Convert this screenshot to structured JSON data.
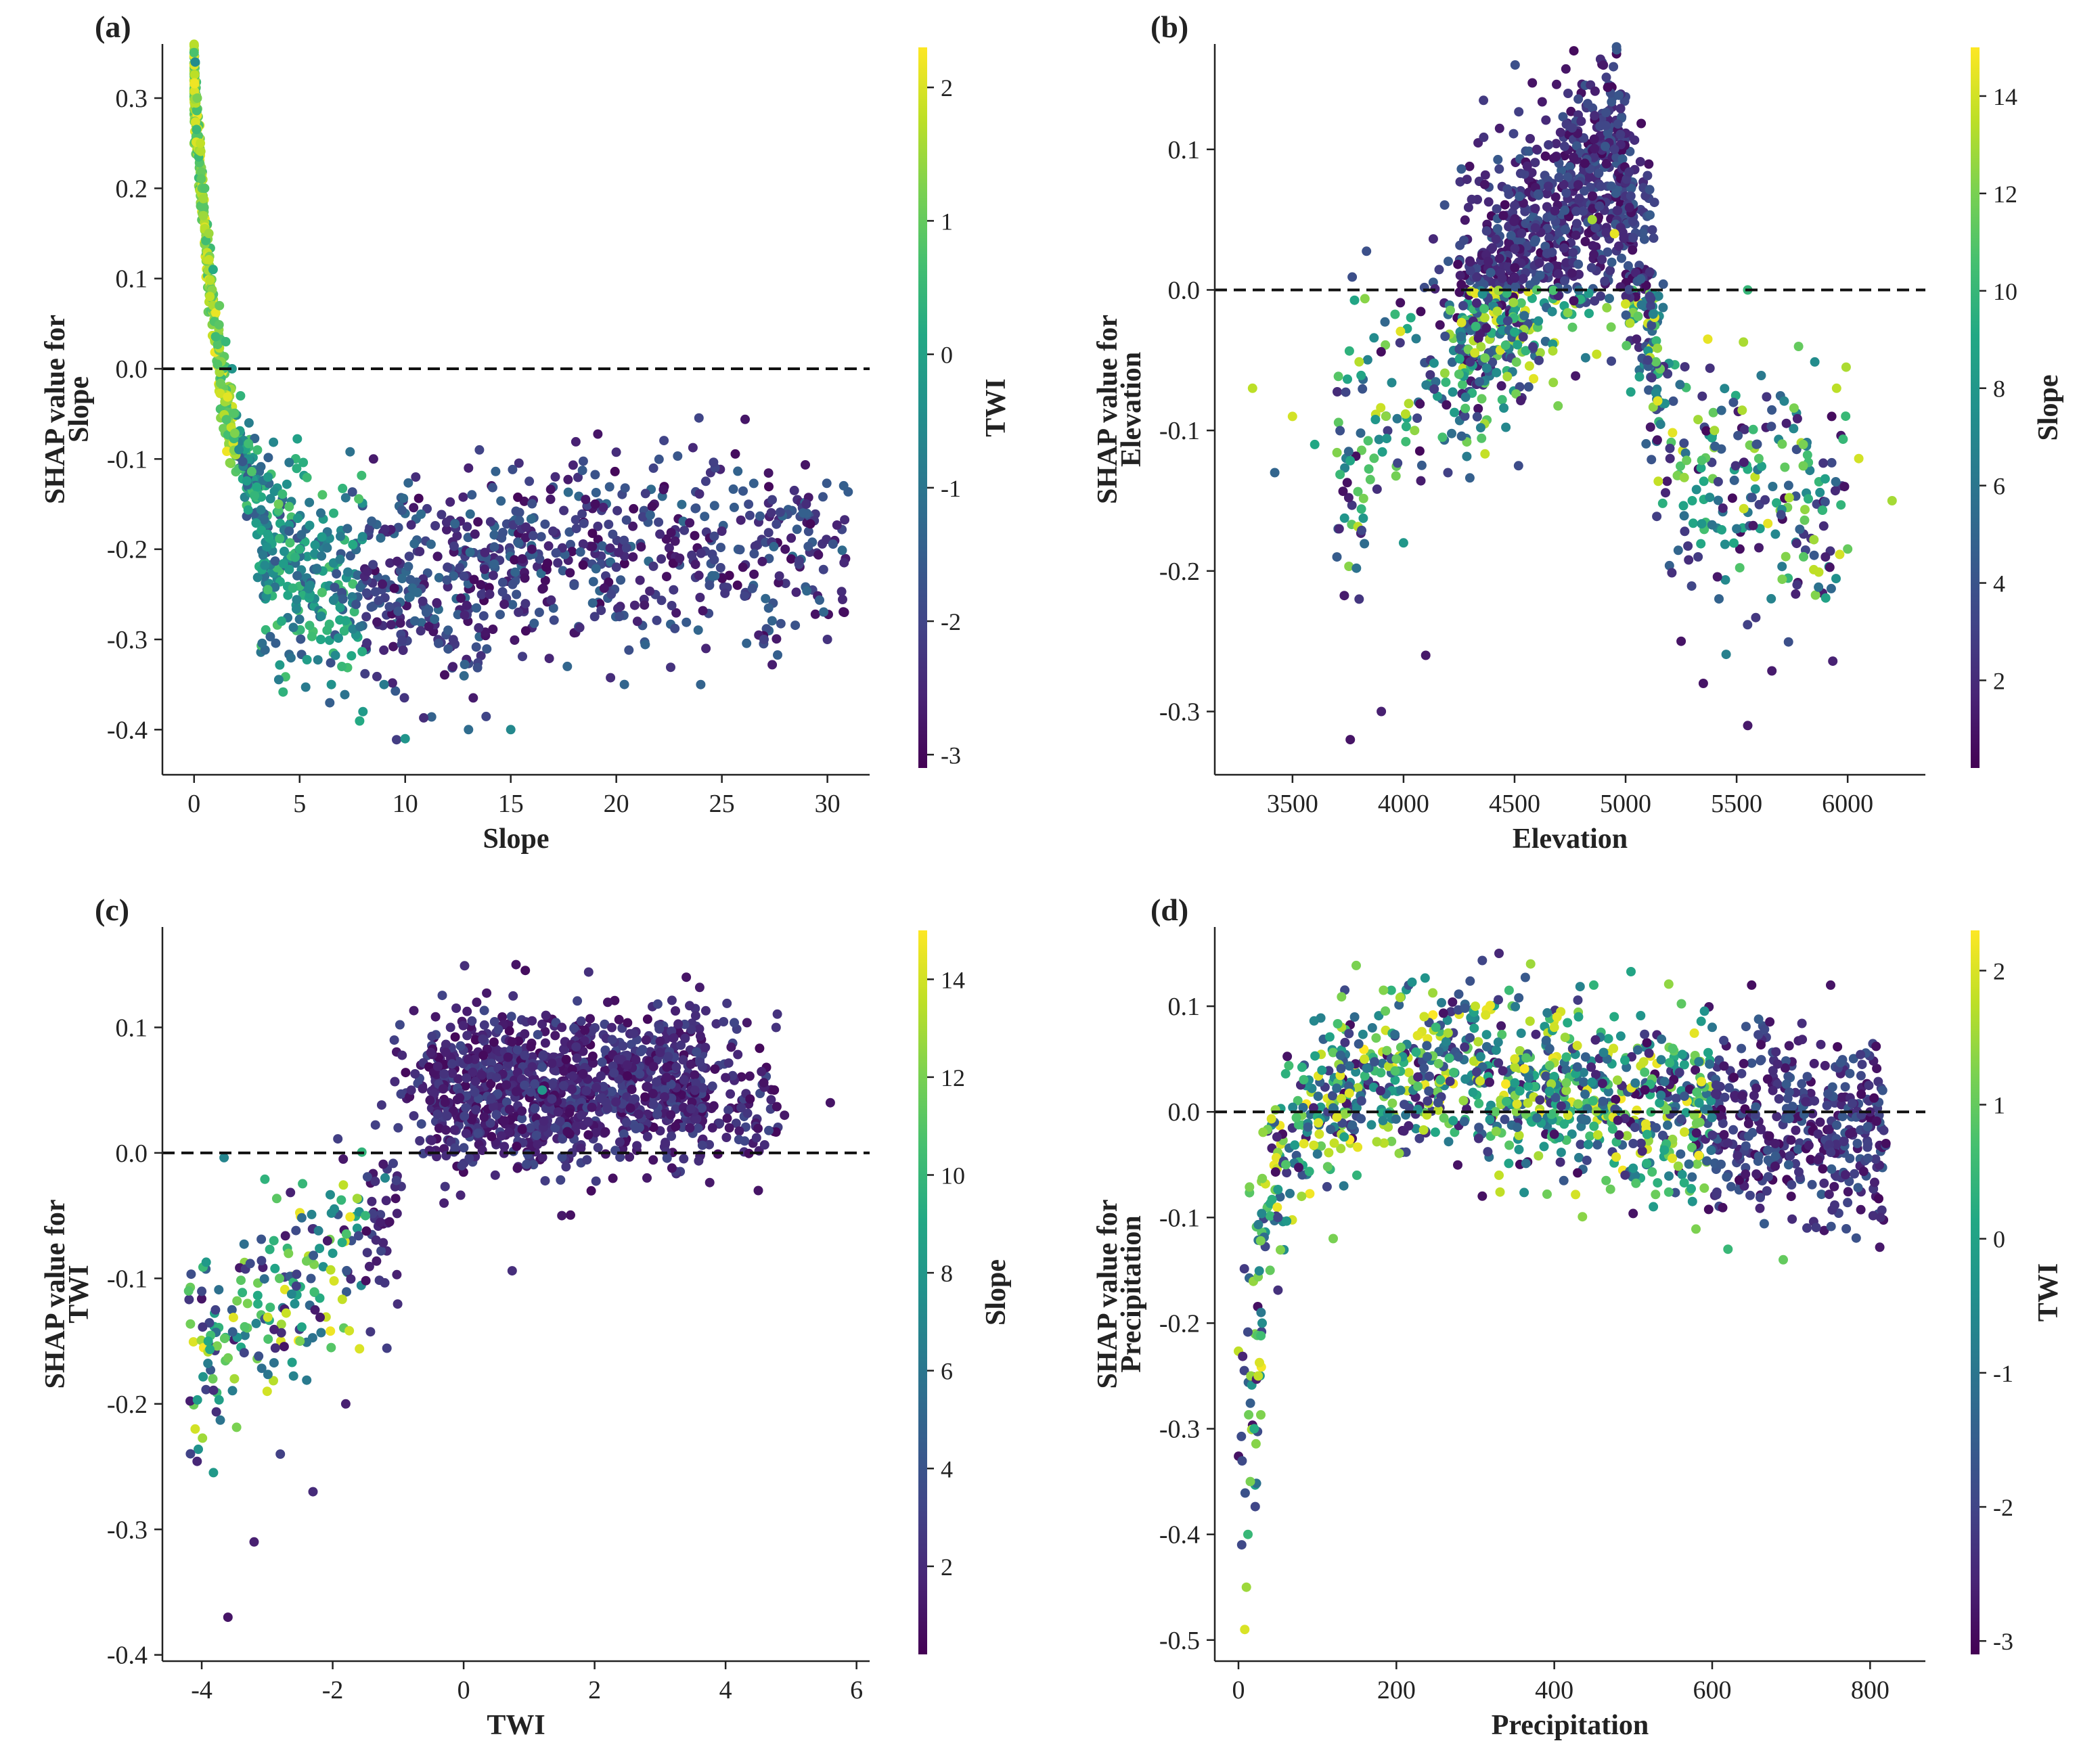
{
  "chart_data": [
    {
      "type": "scatter",
      "panel_label": "(a)",
      "feature": "Slope",
      "xlabel": "Slope",
      "ylabel_line1": "SHAP value for",
      "ylabel_line2": "Slope",
      "xlim": [
        -1.5,
        32
      ],
      "ylim": [
        -0.45,
        0.36
      ],
      "xticks": [
        0,
        5,
        10,
        15,
        20,
        25,
        30
      ],
      "xtick_labels": [
        "0",
        "5",
        "10",
        "15",
        "20",
        "25",
        "30"
      ],
      "yticks": [
        0.3,
        0.2,
        0.1,
        0.0,
        -0.1,
        -0.2,
        -0.3,
        -0.4
      ],
      "ytick_labels": [
        "0.3",
        "0.2",
        "0.1",
        "0.0",
        "-0.1",
        "-0.2",
        "-0.3",
        "-0.4"
      ],
      "zero_line": 0.0,
      "colorbar": {
        "label": "TWI",
        "range": [
          -3.1,
          2.3
        ],
        "ticks": [
          2,
          1,
          0,
          -1,
          -2,
          -3
        ],
        "tick_labels": [
          "2",
          "1",
          "0",
          "-1",
          "-2",
          "-3"
        ]
      },
      "points": [
        [
          0.05,
          0.34,
          -0.5
        ],
        [
          0.15,
          0.3,
          1.2
        ],
        [
          0.3,
          0.25,
          1.8
        ],
        [
          0.5,
          0.2,
          0.8
        ],
        [
          0.7,
          0.15,
          1.5
        ],
        [
          0.9,
          0.11,
          0.2
        ],
        [
          1.2,
          0.07,
          1.0
        ],
        [
          1.5,
          0.03,
          0.5
        ],
        [
          1.8,
          0.0,
          -0.3
        ],
        [
          2.2,
          -0.03,
          0.4
        ],
        [
          2.6,
          -0.06,
          -0.8
        ],
        [
          3.0,
          -0.09,
          0.6
        ],
        [
          3.5,
          -0.12,
          -0.2
        ],
        [
          4.0,
          -0.15,
          1.1
        ],
        [
          4.5,
          -0.18,
          -1.5
        ],
        [
          5.0,
          -0.2,
          0.3
        ],
        [
          5.5,
          -0.24,
          -0.6
        ],
        [
          6.0,
          -0.3,
          0.1
        ],
        [
          6.5,
          -0.35,
          -0.4
        ],
        [
          7.0,
          -0.33,
          0.5
        ],
        [
          8.0,
          -0.38,
          -0.2
        ],
        [
          9.0,
          -0.35,
          -0.9
        ],
        [
          10.0,
          -0.41,
          -0.3
        ],
        [
          11.0,
          -0.27,
          -1.6
        ],
        [
          12.0,
          -0.22,
          -2.1
        ],
        [
          13.0,
          -0.4,
          -1.2
        ],
        [
          14.0,
          -0.25,
          -2.5
        ],
        [
          15.0,
          -0.4,
          -0.6
        ],
        [
          16.0,
          -0.2,
          -2.8
        ],
        [
          17.0,
          -0.18,
          -2.3
        ],
        [
          18.0,
          -0.24,
          -1.8
        ],
        [
          19.0,
          -0.15,
          -2.9
        ],
        [
          20.0,
          -0.22,
          -2.2
        ],
        [
          21.0,
          -0.28,
          -2.6
        ],
        [
          22.0,
          -0.17,
          -2.0
        ],
        [
          23.0,
          -0.21,
          -2.7
        ],
        [
          24.0,
          -0.35,
          -1.4
        ],
        [
          25.0,
          -0.18,
          -2.5
        ],
        [
          26.0,
          -0.22,
          -2.9
        ],
        [
          27.0,
          -0.3,
          -2.1
        ],
        [
          28.0,
          -0.2,
          -2.8
        ],
        [
          29.0,
          -0.15,
          -2.4
        ],
        [
          30.0,
          -0.3,
          -2.3
        ],
        [
          30.8,
          -0.27,
          -2.9
        ],
        [
          8.5,
          -0.1,
          -2.7
        ],
        [
          10.5,
          -0.12,
          -2.4
        ],
        [
          13.0,
          -0.11,
          -2.6
        ],
        [
          6.0,
          -0.16,
          -1.1
        ]
      ]
    },
    {
      "type": "scatter",
      "panel_label": "(b)",
      "feature": "Elevation",
      "xlabel": "Elevation",
      "ylabel_line1": "SHAP value for",
      "ylabel_line2": "Elevation",
      "xlim": [
        3150,
        6350
      ],
      "ylim": [
        -0.345,
        0.175
      ],
      "xticks": [
        3500,
        4000,
        4500,
        5000,
        5500,
        6000
      ],
      "xtick_labels": [
        "3500",
        "4000",
        "4500",
        "5000",
        "5500",
        "6000"
      ],
      "yticks": [
        0.1,
        0.0,
        -0.1,
        -0.2,
        -0.3
      ],
      "ytick_labels": [
        "0.1",
        "0.0",
        "-0.1",
        "-0.2",
        "-0.3"
      ],
      "zero_line": 0.0,
      "colorbar": {
        "label": "Slope",
        "range": [
          0.2,
          15
        ],
        "ticks": [
          14,
          12,
          10,
          8,
          6,
          4,
          2
        ],
        "tick_labels": [
          "14",
          "12",
          "10",
          "8",
          "6",
          "4",
          "2"
        ]
      },
      "points": [
        [
          3320,
          -0.07,
          13.5
        ],
        [
          3420,
          -0.13,
          5.0
        ],
        [
          3500,
          -0.09,
          14.0
        ],
        [
          3600,
          -0.11,
          9.0
        ],
        [
          3700,
          -0.19,
          4.5
        ],
        [
          3760,
          -0.32,
          1.0
        ],
        [
          3800,
          -0.22,
          2.5
        ],
        [
          3900,
          -0.3,
          1.5
        ],
        [
          4000,
          -0.18,
          8.0
        ],
        [
          4050,
          -0.1,
          12.5
        ],
        [
          4100,
          -0.26,
          1.2
        ],
        [
          4200,
          -0.13,
          3.0
        ],
        [
          4250,
          -0.06,
          11.0
        ],
        [
          4300,
          0.02,
          1.5
        ],
        [
          4400,
          0.03,
          2.0
        ],
        [
          4500,
          0.06,
          2.5
        ],
        [
          4600,
          0.1,
          1.8
        ],
        [
          4700,
          0.08,
          3.5
        ],
        [
          4800,
          0.12,
          2.0
        ],
        [
          4900,
          0.16,
          1.2
        ],
        [
          4950,
          0.1,
          2.8
        ],
        [
          4850,
          0.05,
          13.0
        ],
        [
          4600,
          0.0,
          11.0
        ],
        [
          4500,
          -0.03,
          9.0
        ],
        [
          5000,
          -0.01,
          14.0
        ],
        [
          5100,
          -0.05,
          3.0
        ],
        [
          5200,
          -0.12,
          2.0
        ],
        [
          5250,
          -0.25,
          1.0
        ],
        [
          5300,
          -0.15,
          9.0
        ],
        [
          5400,
          -0.1,
          13.0
        ],
        [
          5500,
          -0.17,
          6.0
        ],
        [
          5550,
          -0.31,
          1.2
        ],
        [
          5600,
          -0.12,
          11.0
        ],
        [
          5700,
          -0.16,
          3.5
        ],
        [
          5800,
          -0.11,
          12.0
        ],
        [
          5900,
          -0.19,
          1.5
        ],
        [
          5950,
          -0.07,
          13.5
        ],
        [
          6050,
          -0.12,
          14.0
        ],
        [
          6200,
          -0.15,
          13.0
        ],
        [
          5550,
          0.0,
          10.0
        ],
        [
          4950,
          0.04,
          14.5
        ],
        [
          5350,
          -0.28,
          1.0
        ]
      ]
    },
    {
      "type": "scatter",
      "panel_label": "(c)",
      "feature": "TWI",
      "xlabel": "TWI",
      "ylabel_line1": "SHAP value for",
      "ylabel_line2": "TWI",
      "xlim": [
        -4.6,
        6.2
      ],
      "ylim": [
        -0.405,
        0.18
      ],
      "xticks": [
        -4,
        -2,
        0,
        2,
        4,
        6
      ],
      "xtick_labels": [
        "-4",
        "-2",
        "0",
        "2",
        "4",
        "6"
      ],
      "yticks": [
        0.1,
        0.0,
        -0.1,
        -0.2,
        -0.3,
        -0.4
      ],
      "ytick_labels": [
        "0.1",
        "0.0",
        "-0.1",
        "-0.2",
        "-0.3",
        "-0.4"
      ],
      "zero_line": 0.0,
      "colorbar": {
        "label": "Slope",
        "range": [
          0.2,
          15
        ],
        "ticks": [
          14,
          12,
          10,
          8,
          6,
          4,
          2
        ],
        "tick_labels": [
          "14",
          "12",
          "10",
          "8",
          "6",
          "4",
          "2"
        ]
      },
      "points": [
        [
          -4.2,
          -0.11,
          11.0
        ],
        [
          -4.1,
          -0.22,
          14.0
        ],
        [
          -3.9,
          -0.15,
          9.0
        ],
        [
          -3.6,
          -0.37,
          1.0
        ],
        [
          -3.5,
          -0.18,
          13.0
        ],
        [
          -3.3,
          -0.12,
          12.0
        ],
        [
          -3.2,
          -0.31,
          1.5
        ],
        [
          -3.0,
          -0.19,
          14.0
        ],
        [
          -2.8,
          -0.24,
          3.0
        ],
        [
          -2.5,
          -0.15,
          12.0
        ],
        [
          -2.3,
          -0.27,
          2.0
        ],
        [
          -2.0,
          -0.08,
          8.0
        ],
        [
          -1.8,
          -0.2,
          1.5
        ],
        [
          -1.5,
          -0.05,
          10.0
        ],
        [
          -1.2,
          -0.02,
          7.0
        ],
        [
          -1.0,
          0.02,
          3.0
        ],
        [
          -0.8,
          0.05,
          2.0
        ],
        [
          -0.5,
          0.08,
          1.5
        ],
        [
          -0.2,
          0.1,
          2.0
        ],
        [
          0.2,
          0.12,
          1.2
        ],
        [
          0.5,
          0.06,
          2.5
        ],
        [
          0.8,
          0.15,
          1.0
        ],
        [
          1.2,
          0.05,
          8.0
        ],
        [
          1.5,
          0.1,
          1.5
        ],
        [
          1.8,
          0.03,
          2.0
        ],
        [
          2.2,
          0.12,
          1.0
        ],
        [
          2.5,
          0.07,
          1.5
        ],
        [
          2.8,
          -0.02,
          1.2
        ],
        [
          3.0,
          0.08,
          1.8
        ],
        [
          3.4,
          0.14,
          1.0
        ],
        [
          3.8,
          0.02,
          1.3
        ],
        [
          4.0,
          0.06,
          1.5
        ],
        [
          4.5,
          -0.03,
          1.0
        ],
        [
          4.9,
          0.03,
          1.2
        ],
        [
          5.6,
          0.04,
          1.0
        ],
        [
          -0.3,
          -0.04,
          1.5
        ],
        [
          1.5,
          -0.05,
          1.2
        ]
      ]
    },
    {
      "type": "scatter",
      "panel_label": "(d)",
      "feature": "Precipitation",
      "xlabel": "Precipitation",
      "ylabel_line1": "SHAP value for",
      "ylabel_line2": "Precipitation",
      "xlim": [
        -30,
        870
      ],
      "ylim": [
        -0.52,
        0.175
      ],
      "xticks": [
        0,
        200,
        400,
        600,
        800
      ],
      "xtick_labels": [
        "0",
        "200",
        "400",
        "600",
        "800"
      ],
      "yticks": [
        0.1,
        0.0,
        -0.1,
        -0.2,
        -0.3,
        -0.4,
        -0.5
      ],
      "ytick_labels": [
        "0.1",
        "0.0",
        "-0.1",
        "-0.2",
        "-0.3",
        "-0.4",
        "-0.5"
      ],
      "zero_line": 0.0,
      "colorbar": {
        "label": "TWI",
        "range": [
          -3.1,
          2.3
        ],
        "ticks": [
          2,
          1,
          0,
          -1,
          -2,
          -3
        ],
        "tick_labels": [
          "2",
          "1",
          "0",
          "-1",
          "-2",
          "-3"
        ]
      },
      "points": [
        [
          8,
          -0.49,
          2.0
        ],
        [
          10,
          -0.45,
          1.5
        ],
        [
          12,
          -0.4,
          0.5
        ],
        [
          15,
          -0.35,
          1.2
        ],
        [
          20,
          -0.3,
          0.2
        ],
        [
          25,
          -0.25,
          1.8
        ],
        [
          30,
          -0.2,
          -0.5
        ],
        [
          40,
          -0.15,
          1.0
        ],
        [
          50,
          -0.1,
          -2.0
        ],
        [
          60,
          -0.05,
          0.8
        ],
        [
          80,
          -0.08,
          1.5
        ],
        [
          100,
          -0.04,
          -1.0
        ],
        [
          120,
          -0.12,
          1.2
        ],
        [
          150,
          -0.06,
          0.4
        ],
        [
          180,
          0.02,
          -2.5
        ],
        [
          200,
          0.05,
          1.0
        ],
        [
          250,
          0.08,
          0.5
        ],
        [
          300,
          0.1,
          1.8
        ],
        [
          330,
          0.15,
          -2.5
        ],
        [
          350,
          0.05,
          2.0
        ],
        [
          370,
          0.14,
          1.5
        ],
        [
          400,
          0.08,
          1.9
        ],
        [
          450,
          0.12,
          0.4
        ],
        [
          480,
          0.03,
          1.5
        ],
        [
          500,
          -0.03,
          -2.0
        ],
        [
          550,
          0.06,
          0.8
        ],
        [
          580,
          -0.02,
          -2.8
        ],
        [
          600,
          0.08,
          -1.0
        ],
        [
          620,
          -0.13,
          0.5
        ],
        [
          650,
          0.12,
          -2.9
        ],
        [
          680,
          -0.03,
          -2.7
        ],
        [
          690,
          -0.14,
          1.0
        ],
        [
          700,
          -0.08,
          -2.9
        ],
        [
          720,
          -0.11,
          -2.2
        ],
        [
          750,
          0.12,
          -2.8
        ],
        [
          800,
          0.0,
          -2.6
        ],
        [
          820,
          -0.03,
          -2.9
        ],
        [
          330,
          -0.06,
          1.8
        ],
        [
          560,
          -0.04,
          -1.5
        ]
      ]
    }
  ]
}
